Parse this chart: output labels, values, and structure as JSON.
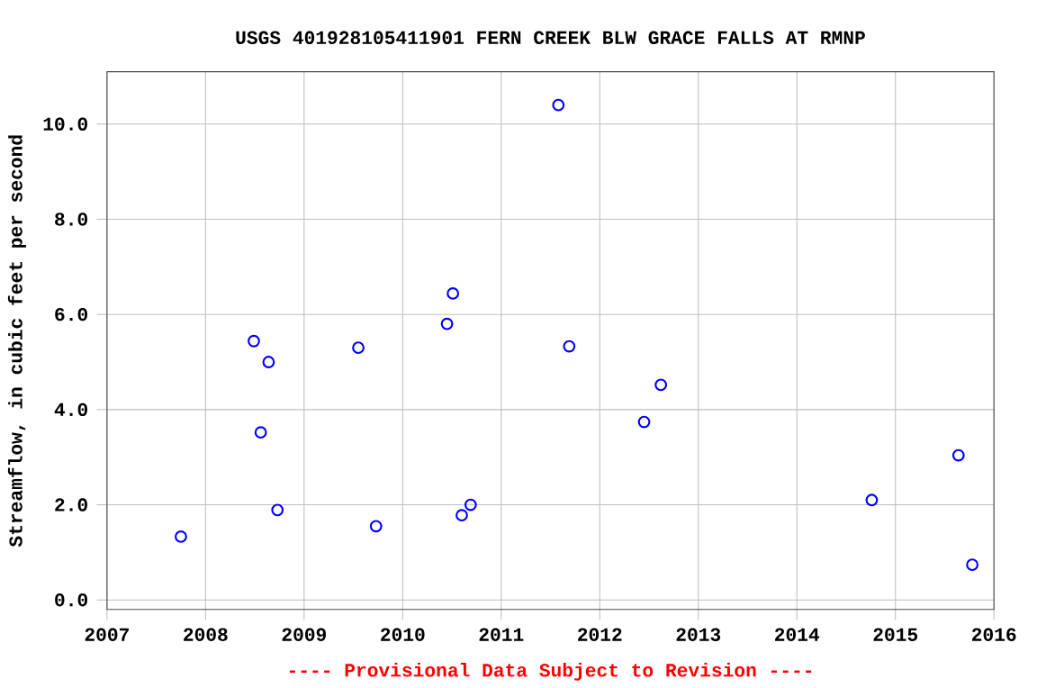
{
  "chart_data": {
    "type": "scatter",
    "title": "USGS 401928105411901 FERN CREEK BLW GRACE FALLS AT RMNP",
    "ylabel": "Streamflow, in cubic feet per second",
    "annotations": [
      "---- Provisional Data Subject to Revision ----"
    ],
    "x": [
      2007.75,
      2008.49,
      2008.56,
      2008.64,
      2008.73,
      2009.55,
      2009.73,
      2010.45,
      2010.51,
      2010.6,
      2010.69,
      2011.58,
      2011.69,
      2012.45,
      2012.62,
      2014.76,
      2015.64,
      2015.78
    ],
    "series": [
      {
        "color": "#0000ff",
        "values": [
          1.33,
          5.44,
          3.52,
          5.0,
          1.89,
          5.3,
          1.55,
          5.8,
          6.44,
          1.78,
          2.0,
          10.4,
          5.33,
          3.74,
          4.52,
          2.1,
          3.04,
          0.74
        ]
      }
    ],
    "xlim": [
      2007,
      2016
    ],
    "xticks": [
      2007,
      2008,
      2009,
      2010,
      2011,
      2012,
      2013,
      2014,
      2015,
      2016
    ],
    "ylim": [
      -0.2,
      11.1
    ],
    "yticks": [
      {
        "value": 0,
        "label": "0.0"
      },
      {
        "value": 2,
        "label": "2.0"
      },
      {
        "value": 4,
        "label": "4.0"
      },
      {
        "value": 6,
        "label": "6.0"
      },
      {
        "value": 8,
        "label": "8.0"
      },
      {
        "value": 10,
        "label": "10.0"
      }
    ],
    "grid": true,
    "marker": "circle"
  }
}
